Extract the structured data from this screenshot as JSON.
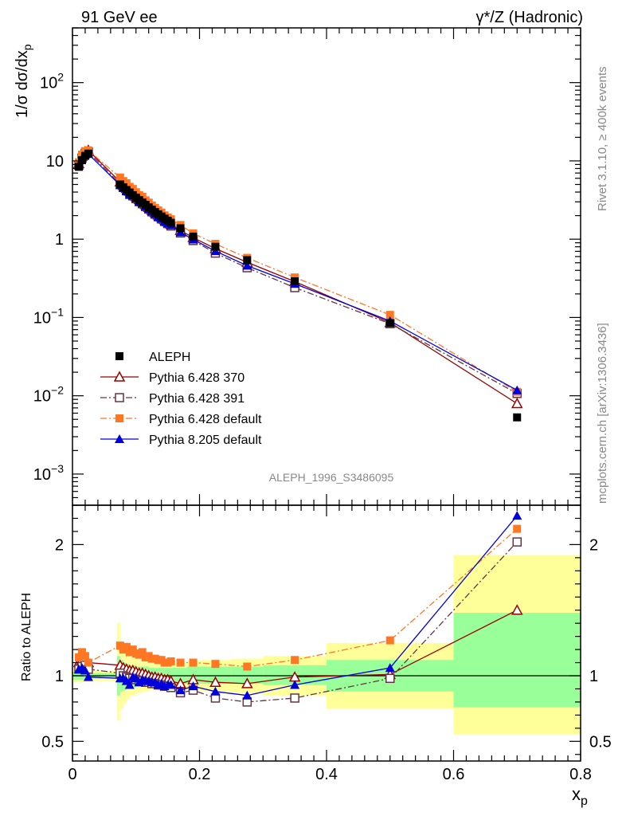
{
  "header": {
    "left_label": "91 GeV ee",
    "right_label": "γ*/Z (Hadronic)",
    "analysis_label": "ALEPH_1996_S3486095"
  },
  "side_text": {
    "top": "Rivet 3.1.10, ≥ 400k events",
    "bottom": "mcplots.cern.ch [arXiv:1306.3436]"
  },
  "chart_data": {
    "type": "line",
    "title": "",
    "xlabel": "x",
    "xlabel_sub": "p",
    "xlim": [
      0,
      0.8
    ],
    "xticks": [
      0,
      0.2,
      0.4,
      0.6,
      0.8
    ],
    "xtick_labels": [
      "0",
      "0.2",
      "0.4",
      "0.6",
      "0.8"
    ],
    "main": {
      "ylabel": "1/σ dσ/dx",
      "ylabel_sub": "p",
      "yscale": "log",
      "ylim": [
        0.0004,
        500
      ],
      "yticks": [
        {
          "value": 0.001,
          "base": "10",
          "exp": "−3"
        },
        {
          "value": 0.01,
          "base": "10",
          "exp": "−2"
        },
        {
          "value": 0.1,
          "base": "10",
          "exp": "−1"
        },
        {
          "value": 1,
          "base": "1",
          "exp": ""
        },
        {
          "value": 10,
          "base": "10",
          "exp": ""
        },
        {
          "value": 100,
          "base": "10",
          "exp": "2"
        }
      ]
    },
    "ratio": {
      "ylabel": "Ratio to ALEPH",
      "ylim": [
        0.35,
        2.3
      ],
      "yticks": [
        0.5,
        1,
        2
      ],
      "ytick_labels": [
        "0.5",
        "1",
        "2"
      ],
      "bands": [
        {
          "x0": 0.0,
          "x1": 0.01,
          "y1lo": 0.97,
          "y1hi": 1.03,
          "y2lo": 0.95,
          "y2hi": 1.05
        },
        {
          "x0": 0.01,
          "x1": 0.02,
          "y1lo": 0.97,
          "y1hi": 1.03,
          "y2lo": 0.95,
          "y2hi": 1.05
        },
        {
          "x0": 0.02,
          "x1": 0.03,
          "y1lo": 0.98,
          "y1hi": 1.02,
          "y2lo": 0.96,
          "y2hi": 1.04
        },
        {
          "x0": 0.03,
          "x1": 0.07,
          "y1lo": 0.98,
          "y1hi": 1.02,
          "y2lo": 0.96,
          "y2hi": 1.04
        },
        {
          "x0": 0.07,
          "x1": 0.075,
          "y1lo": 0.85,
          "y1hi": 1.15,
          "y2lo": 0.66,
          "y2hi": 1.4
        },
        {
          "x0": 0.075,
          "x1": 0.08,
          "y1lo": 0.88,
          "y1hi": 1.12,
          "y2lo": 0.75,
          "y2hi": 1.25
        },
        {
          "x0": 0.08,
          "x1": 0.085,
          "y1lo": 0.89,
          "y1hi": 1.1,
          "y2lo": 0.79,
          "y2hi": 1.2
        },
        {
          "x0": 0.085,
          "x1": 0.09,
          "y1lo": 0.9,
          "y1hi": 1.09,
          "y2lo": 0.82,
          "y2hi": 1.17
        },
        {
          "x0": 0.09,
          "x1": 0.1,
          "y1lo": 0.91,
          "y1hi": 1.08,
          "y2lo": 0.85,
          "y2hi": 1.14
        },
        {
          "x0": 0.1,
          "x1": 0.11,
          "y1lo": 0.92,
          "y1hi": 1.07,
          "y2lo": 0.87,
          "y2hi": 1.12
        },
        {
          "x0": 0.11,
          "x1": 0.12,
          "y1lo": 0.93,
          "y1hi": 1.07,
          "y2lo": 0.88,
          "y2hi": 1.11
        },
        {
          "x0": 0.12,
          "x1": 0.14,
          "y1lo": 0.93,
          "y1hi": 1.06,
          "y2lo": 0.89,
          "y2hi": 1.1
        },
        {
          "x0": 0.14,
          "x1": 0.16,
          "y1lo": 0.94,
          "y1hi": 1.06,
          "y2lo": 0.9,
          "y2hi": 1.1
        },
        {
          "x0": 0.16,
          "x1": 0.18,
          "y1lo": 0.94,
          "y1hi": 1.06,
          "y2lo": 0.89,
          "y2hi": 1.1
        },
        {
          "x0": 0.18,
          "x1": 0.2,
          "y1lo": 0.94,
          "y1hi": 1.07,
          "y2lo": 0.89,
          "y2hi": 1.11
        },
        {
          "x0": 0.2,
          "x1": 0.25,
          "y1lo": 0.94,
          "y1hi": 1.07,
          "y2lo": 0.88,
          "y2hi": 1.12
        },
        {
          "x0": 0.25,
          "x1": 0.3,
          "y1lo": 0.94,
          "y1hi": 1.07,
          "y2lo": 0.87,
          "y2hi": 1.13
        },
        {
          "x0": 0.3,
          "x1": 0.4,
          "y1lo": 0.93,
          "y1hi": 1.08,
          "y2lo": 0.85,
          "y2hi": 1.15
        },
        {
          "x0": 0.4,
          "x1": 0.6,
          "y1lo": 0.88,
          "y1hi": 1.12,
          "y2lo": 0.75,
          "y2hi": 1.25
        },
        {
          "x0": 0.6,
          "x1": 0.8,
          "y1lo": 0.76,
          "y1hi": 1.48,
          "y2lo": 0.55,
          "y2hi": 1.92
        }
      ]
    },
    "legend": {
      "placement": "bottom-left"
    },
    "series": [
      {
        "name": "ALEPH",
        "color": "#000000",
        "marker": "square-filled",
        "line": "none",
        "x": [
          0.01,
          0.015,
          0.02,
          0.025,
          0.075,
          0.08,
          0.085,
          0.09,
          0.095,
          0.1,
          0.105,
          0.11,
          0.115,
          0.12,
          0.125,
          0.13,
          0.135,
          0.14,
          0.145,
          0.15,
          0.155,
          0.17,
          0.19,
          0.225,
          0.275,
          0.35,
          0.5,
          0.7
        ],
        "y": [
          8.4,
          10.2,
          11.6,
          12.4,
          5.0,
          4.6,
          4.25,
          3.95,
          3.65,
          3.4,
          3.15,
          2.95,
          2.75,
          2.55,
          2.38,
          2.22,
          2.08,
          1.95,
          1.83,
          1.72,
          1.62,
          1.38,
          1.08,
          0.8,
          0.54,
          0.29,
          0.085,
          0.0053
        ],
        "ratio": [
          1,
          1,
          1,
          1,
          1,
          1,
          1,
          1,
          1,
          1,
          1,
          1,
          1,
          1,
          1,
          1,
          1,
          1,
          1,
          1,
          1,
          1,
          1,
          1,
          1,
          1,
          1,
          1
        ]
      },
      {
        "name": "Pythia 6.428 370",
        "color": "#990000",
        "marker": "triangle-open",
        "line": "solid",
        "x": [
          0.01,
          0.015,
          0.02,
          0.025,
          0.075,
          0.08,
          0.085,
          0.09,
          0.095,
          0.1,
          0.105,
          0.11,
          0.115,
          0.12,
          0.125,
          0.13,
          0.135,
          0.14,
          0.145,
          0.15,
          0.155,
          0.17,
          0.19,
          0.225,
          0.275,
          0.35,
          0.5,
          0.7
        ],
        "ratio": [
          1.1,
          1.12,
          1.13,
          1.1,
          1.08,
          1.06,
          1.05,
          1.04,
          1.04,
          1.03,
          1.02,
          1.02,
          1.01,
          1.0,
          0.99,
          0.99,
          0.98,
          0.98,
          0.97,
          0.97,
          0.96,
          0.94,
          0.97,
          0.95,
          0.94,
          0.99,
          1.01,
          1.5
        ]
      },
      {
        "name": "Pythia 6.428 391",
        "color": "#663344",
        "marker": "square-open",
        "line": "dashdot",
        "x": [
          0.01,
          0.015,
          0.02,
          0.025,
          0.075,
          0.08,
          0.085,
          0.09,
          0.095,
          0.1,
          0.105,
          0.11,
          0.115,
          0.12,
          0.125,
          0.13,
          0.135,
          0.14,
          0.145,
          0.15,
          0.155,
          0.17,
          0.19,
          0.225,
          0.275,
          0.35,
          0.5,
          0.7
        ],
        "ratio": [
          1.05,
          1.07,
          1.08,
          1.05,
          1.02,
          1.0,
          0.99,
          0.98,
          0.98,
          0.97,
          0.96,
          0.96,
          0.95,
          0.95,
          0.94,
          0.94,
          0.93,
          0.93,
          0.92,
          0.92,
          0.91,
          0.87,
          0.89,
          0.83,
          0.8,
          0.83,
          0.98,
          2.02
        ]
      },
      {
        "name": "Pythia 6.428 default",
        "color": "#ff7722",
        "marker": "square-filled",
        "line": "dashdot",
        "x": [
          0.01,
          0.015,
          0.02,
          0.025,
          0.075,
          0.08,
          0.085,
          0.09,
          0.095,
          0.1,
          0.105,
          0.11,
          0.115,
          0.12,
          0.125,
          0.13,
          0.135,
          0.14,
          0.145,
          0.15,
          0.155,
          0.17,
          0.19,
          0.225,
          0.275,
          0.35,
          0.5,
          0.7
        ],
        "ratio": [
          1.14,
          1.18,
          1.15,
          1.1,
          1.23,
          1.2,
          1.22,
          1.18,
          1.2,
          1.17,
          1.16,
          1.18,
          1.14,
          1.15,
          1.13,
          1.13,
          1.12,
          1.12,
          1.1,
          1.1,
          1.11,
          1.1,
          1.1,
          1.09,
          1.07,
          1.12,
          1.27,
          2.12
        ]
      },
      {
        "name": "Pythia 8.205 default",
        "color": "#0000dd",
        "marker": "triangle-filled",
        "line": "solid",
        "x": [
          0.01,
          0.015,
          0.02,
          0.025,
          0.075,
          0.08,
          0.085,
          0.09,
          0.095,
          0.1,
          0.105,
          0.11,
          0.115,
          0.12,
          0.125,
          0.13,
          0.135,
          0.14,
          0.145,
          0.15,
          0.155,
          0.17,
          0.19,
          0.225,
          0.275,
          0.35,
          0.5,
          0.7
        ],
        "ratio": [
          1.05,
          1.06,
          1.04,
          0.99,
          0.98,
          0.98,
          0.96,
          0.93,
          0.99,
          0.98,
          0.95,
          0.97,
          0.96,
          0.96,
          0.95,
          0.95,
          0.93,
          0.94,
          0.92,
          0.93,
          0.93,
          0.89,
          0.92,
          0.88,
          0.85,
          0.93,
          1.06,
          2.22
        ]
      }
    ]
  }
}
